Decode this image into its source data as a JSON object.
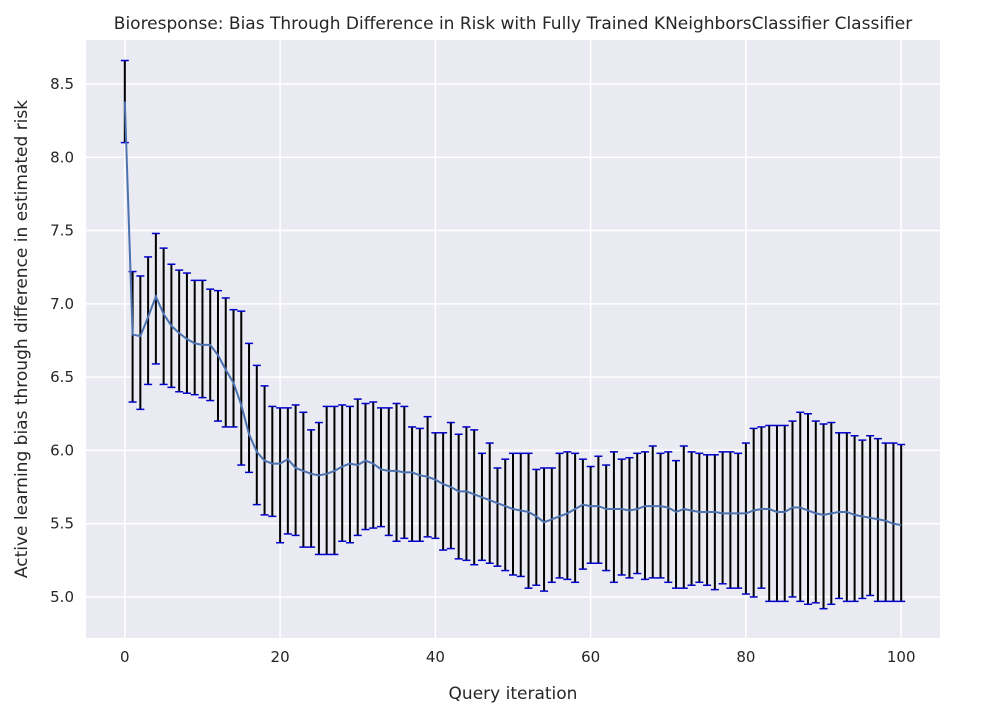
{
  "chart_data": {
    "type": "line",
    "title": "Bioresponse: Bias Through Difference in Risk with Fully Trained KNeighborsClassifier Classifier",
    "xlabel": "Query iteration",
    "ylabel": "Active learning bias through difference in estimated risk",
    "xlim": [
      -5,
      105
    ],
    "ylim": [
      4.72,
      8.8
    ],
    "xticks": [
      0,
      20,
      40,
      60,
      80,
      100
    ],
    "yticks": [
      5.0,
      5.5,
      6.0,
      6.5,
      7.0,
      7.5,
      8.0,
      8.5
    ],
    "grid": true,
    "series": [
      {
        "line_color": "#4c72b0",
        "errorbar_color": "#000000",
        "cap_color": "#0000cc",
        "x": [
          0,
          1,
          2,
          3,
          4,
          5,
          6,
          7,
          8,
          9,
          10,
          11,
          12,
          13,
          14,
          15,
          16,
          17,
          18,
          19,
          20,
          21,
          22,
          23,
          24,
          25,
          26,
          27,
          28,
          29,
          30,
          31,
          32,
          33,
          34,
          35,
          36,
          37,
          38,
          39,
          40,
          41,
          42,
          43,
          44,
          45,
          46,
          47,
          48,
          49,
          50,
          51,
          52,
          53,
          54,
          55,
          56,
          57,
          58,
          59,
          60,
          61,
          62,
          63,
          64,
          65,
          66,
          67,
          68,
          69,
          70,
          71,
          72,
          73,
          74,
          75,
          76,
          77,
          78,
          79,
          80,
          81,
          82,
          83,
          84,
          85,
          86,
          87,
          88,
          89,
          90,
          91,
          92,
          93,
          94,
          95,
          96,
          97,
          98,
          99,
          100
        ],
        "y": [
          8.38,
          6.79,
          6.78,
          6.91,
          7.05,
          6.93,
          6.85,
          6.8,
          6.76,
          6.73,
          6.72,
          6.72,
          6.65,
          6.55,
          6.46,
          6.31,
          6.11,
          5.99,
          5.93,
          5.91,
          5.91,
          5.94,
          5.88,
          5.86,
          5.84,
          5.83,
          5.84,
          5.86,
          5.89,
          5.91,
          5.9,
          5.93,
          5.91,
          5.87,
          5.86,
          5.86,
          5.85,
          5.85,
          5.83,
          5.82,
          5.8,
          5.77,
          5.75,
          5.72,
          5.72,
          5.7,
          5.68,
          5.66,
          5.64,
          5.62,
          5.6,
          5.59,
          5.58,
          5.55,
          5.51,
          5.53,
          5.55,
          5.57,
          5.6,
          5.63,
          5.62,
          5.62,
          5.6,
          5.6,
          5.6,
          5.59,
          5.6,
          5.62,
          5.62,
          5.62,
          5.61,
          5.58,
          5.6,
          5.59,
          5.58,
          5.58,
          5.58,
          5.57,
          5.57,
          5.57,
          5.57,
          5.59,
          5.6,
          5.6,
          5.58,
          5.58,
          5.61,
          5.61,
          5.59,
          5.57,
          5.56,
          5.57,
          5.58,
          5.58,
          5.56,
          5.55,
          5.54,
          5.53,
          5.52,
          5.5,
          5.49
        ],
        "yerr_low": [
          8.1,
          6.33,
          6.28,
          6.45,
          6.59,
          6.45,
          6.43,
          6.4,
          6.39,
          6.38,
          6.36,
          6.34,
          6.2,
          6.16,
          6.16,
          5.9,
          5.85,
          5.63,
          5.56,
          5.55,
          5.37,
          5.43,
          5.42,
          5.34,
          5.34,
          5.29,
          5.29,
          5.29,
          5.38,
          5.37,
          5.42,
          5.46,
          5.47,
          5.48,
          5.42,
          5.38,
          5.4,
          5.38,
          5.38,
          5.41,
          5.4,
          5.32,
          5.33,
          5.26,
          5.25,
          5.22,
          5.25,
          5.23,
          5.21,
          5.18,
          5.15,
          5.14,
          5.06,
          5.08,
          5.04,
          5.1,
          5.13,
          5.12,
          5.1,
          5.19,
          5.23,
          5.23,
          5.18,
          5.1,
          5.15,
          5.13,
          5.16,
          5.12,
          5.13,
          5.13,
          5.1,
          5.06,
          5.06,
          5.08,
          5.1,
          5.08,
          5.05,
          5.09,
          5.06,
          5.06,
          5.02,
          5.0,
          5.06,
          4.97,
          4.97,
          4.97,
          5.0,
          4.97,
          4.95,
          4.96,
          4.92,
          4.95,
          4.99,
          4.97,
          4.97,
          4.99,
          5.01,
          4.97,
          4.97,
          4.97,
          4.97
        ],
        "yerr_high": [
          8.66,
          7.22,
          7.19,
          7.32,
          7.48,
          7.38,
          7.27,
          7.23,
          7.21,
          7.16,
          7.16,
          7.1,
          7.09,
          7.04,
          6.96,
          6.95,
          6.73,
          6.58,
          6.44,
          6.3,
          6.29,
          6.29,
          6.31,
          6.26,
          6.14,
          6.19,
          6.3,
          6.3,
          6.31,
          6.3,
          6.35,
          6.32,
          6.33,
          6.29,
          6.29,
          6.32,
          6.3,
          6.16,
          6.15,
          6.23,
          6.12,
          6.12,
          6.19,
          6.11,
          6.16,
          6.14,
          5.98,
          6.05,
          5.88,
          5.94,
          5.98,
          5.98,
          5.98,
          5.87,
          5.88,
          5.88,
          5.98,
          5.99,
          5.98,
          5.94,
          5.89,
          5.96,
          5.9,
          5.99,
          5.94,
          5.95,
          5.98,
          5.99,
          6.03,
          5.98,
          5.99,
          5.93,
          6.03,
          5.99,
          5.98,
          5.97,
          5.97,
          5.99,
          5.99,
          5.98,
          6.05,
          6.15,
          6.16,
          6.17,
          6.17,
          6.17,
          6.2,
          6.26,
          6.25,
          6.2,
          6.18,
          6.19,
          6.12,
          6.12,
          6.1,
          6.07,
          6.1,
          6.08,
          6.05,
          6.05,
          6.04
        ]
      }
    ]
  }
}
